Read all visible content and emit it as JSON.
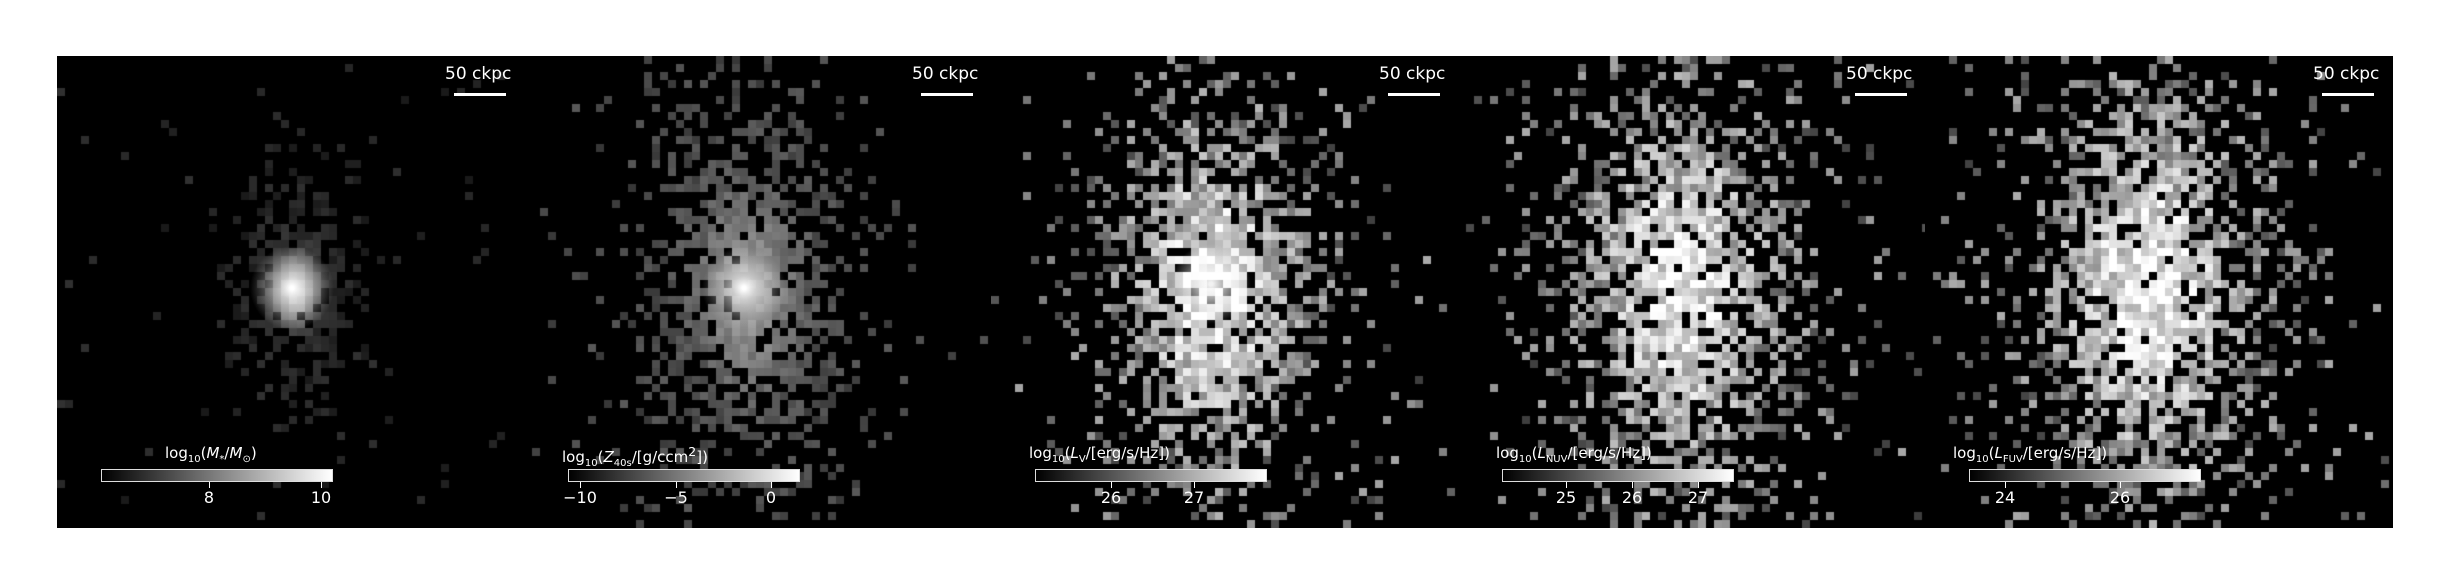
{
  "panels": [
    {
      "scale_bar_label": "50 ckpc",
      "colorbar": {
        "label_html": "log<sub>10</sub>(<i>M</i><sub>*</sub>/<i>M</i><sub>⊙</sub>)",
        "ticks": [
          "8",
          "10"
        ],
        "range": [
          6.2,
          10.2
        ]
      }
    },
    {
      "scale_bar_label": "50 ckpc",
      "colorbar": {
        "label_html": "log<sub>10</sub>(<i>Z</i><sub>40s</sub>/[g/ccm<sup>2</sup>])",
        "ticks": [
          "−10",
          "−5",
          "0"
        ],
        "range": [
          -10.4,
          1.6
        ]
      }
    },
    {
      "scale_bar_label": "50 ckpc",
      "colorbar": {
        "label_html": "log<sub>10</sub>(<i>L</i><sub>V</sub>/[erg/s/Hz])",
        "ticks": [
          "26",
          "27"
        ],
        "range": [
          25.0,
          27.8
        ]
      }
    },
    {
      "scale_bar_label": "50 ckpc",
      "colorbar": {
        "label_html": "log<sub>10</sub>(<i>L</i><sub>NUV</sub>/[erg/s/Hz])",
        "ticks": [
          "25",
          "26",
          "27"
        ],
        "range": [
          24.0,
          27.5
        ]
      }
    },
    {
      "scale_bar_label": "50 ckpc",
      "colorbar": {
        "label_html": "log<sub>10</sub>(<i>L</i><sub>FUV</sub>/[erg/s/Hz])",
        "ticks": [
          "24",
          "26"
        ],
        "range": [
          23.2,
          27.6
        ]
      }
    }
  ]
}
